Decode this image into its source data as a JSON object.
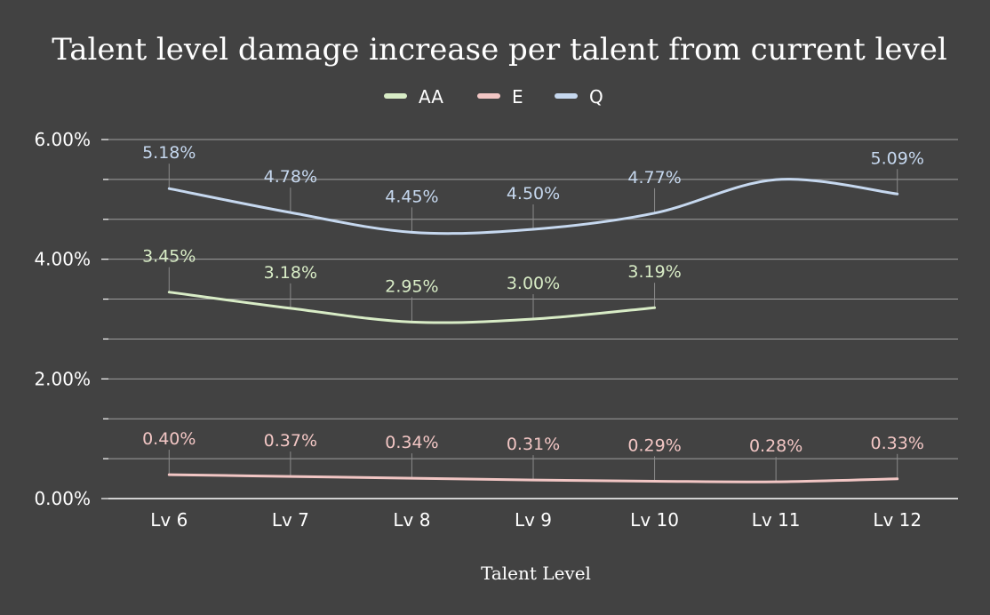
{
  "chart_data": {
    "type": "line",
    "title": "Talent level damage increase per talent from current level",
    "xlabel": "Talent Level",
    "ylabel": "",
    "ylim": [
      0,
      6
    ],
    "yticks": [
      "0.00%",
      "2.00%",
      "4.00%",
      "6.00%"
    ],
    "categories": [
      "Lv 6",
      "Lv 7",
      "Lv 8",
      "Lv 9",
      "Lv 10",
      "Lv 11",
      "Lv 12"
    ],
    "legend_position": "top",
    "grid": true,
    "series": [
      {
        "name": "AA",
        "color": "#d8ecc6",
        "values": [
          3.45,
          3.18,
          2.95,
          3.0,
          3.19,
          null,
          null
        ],
        "labels": [
          "3.45%",
          "3.18%",
          "2.95%",
          "3.00%",
          "3.19%",
          "",
          ""
        ]
      },
      {
        "name": "E",
        "color": "#f2c6c4",
        "values": [
          0.4,
          0.37,
          0.34,
          0.31,
          0.29,
          0.28,
          0.33
        ],
        "labels": [
          "0.40%",
          "0.37%",
          "0.34%",
          "0.31%",
          "0.29%",
          "0.28%",
          "0.33%"
        ]
      },
      {
        "name": "Q",
        "color": "#c6d8ef",
        "values": [
          5.18,
          4.78,
          4.45,
          4.5,
          4.77,
          5.33,
          5.09
        ],
        "labels": [
          "5.18%",
          "4.78%",
          "4.45%",
          "4.50%",
          "4.77%",
          "",
          "5.09%"
        ]
      }
    ]
  }
}
